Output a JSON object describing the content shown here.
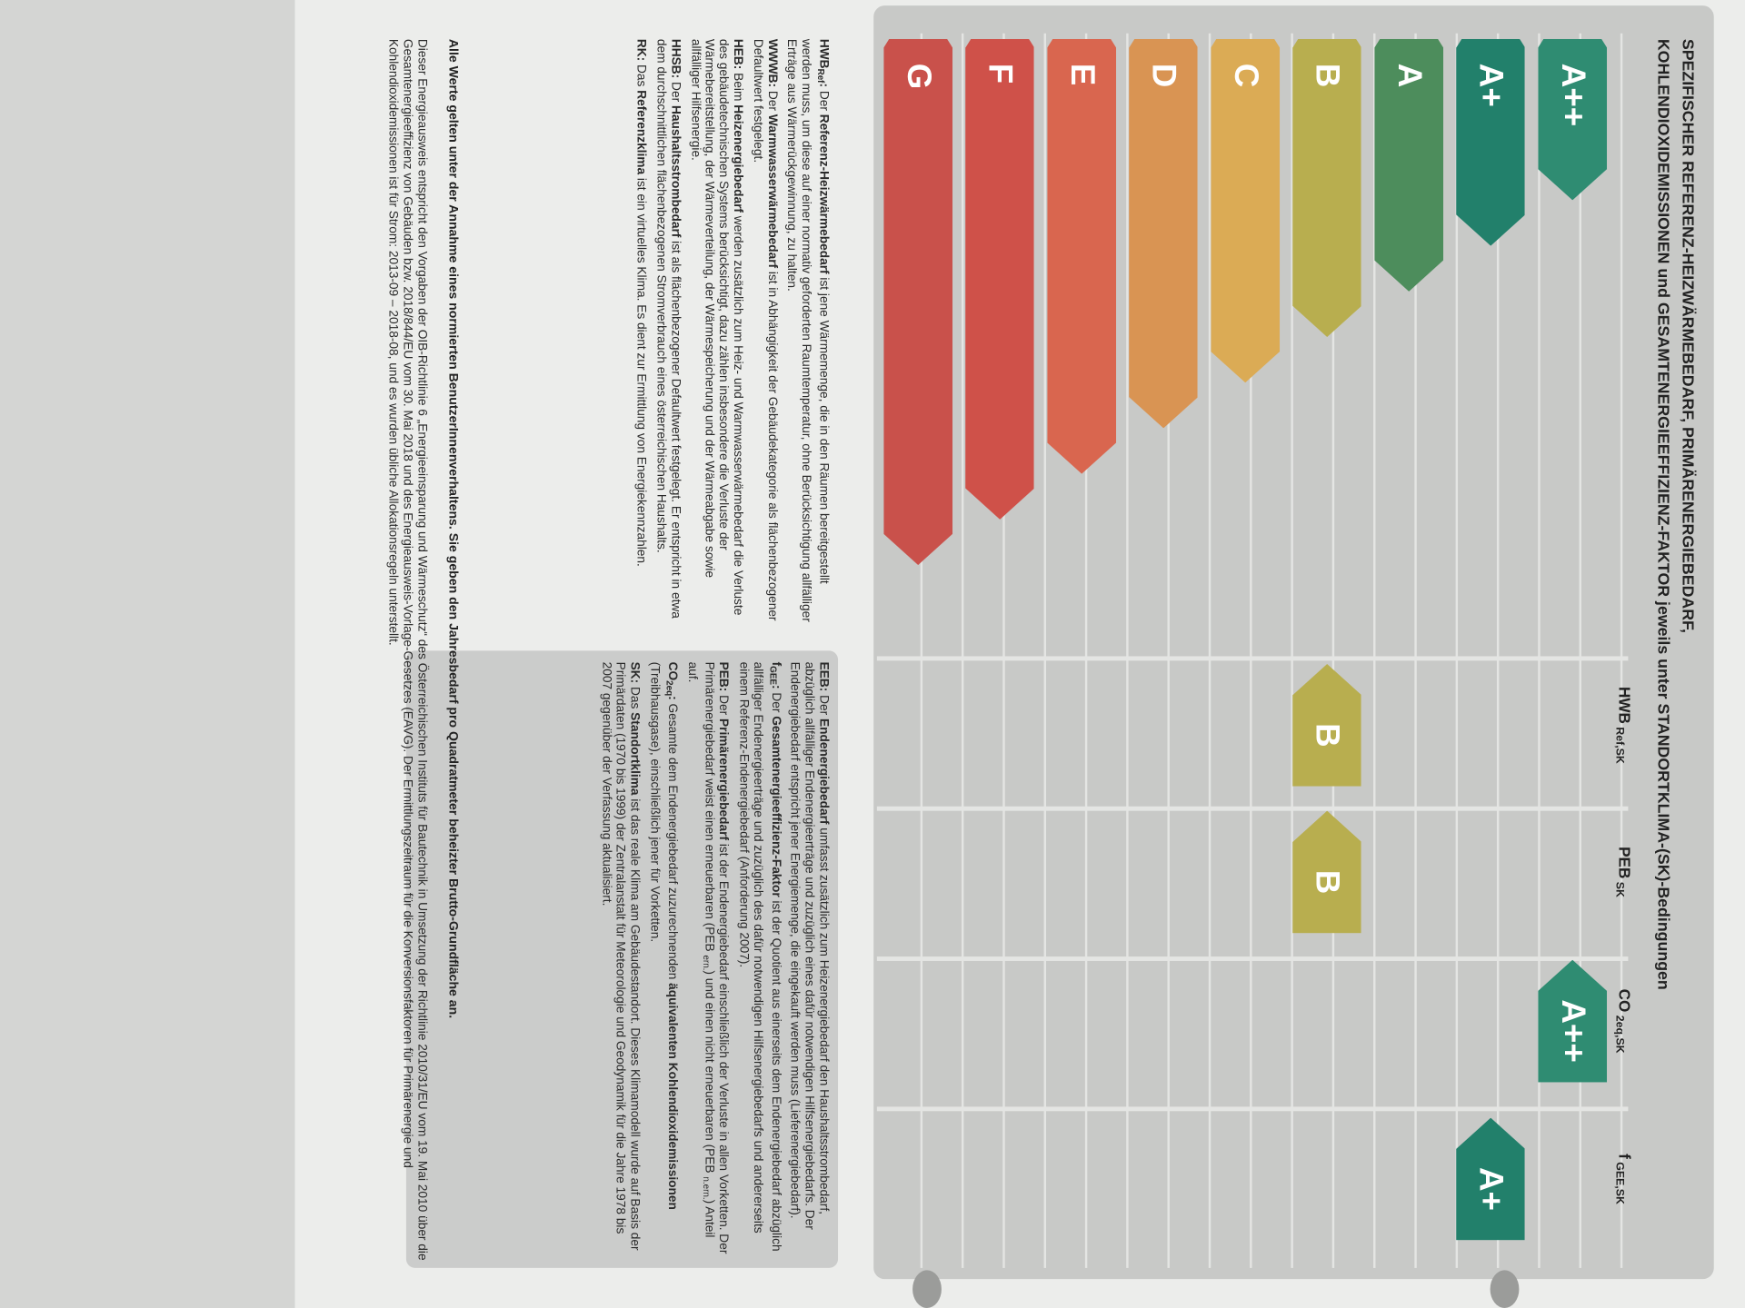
{
  "title": [
    "SPEZIFISCHER REFERENZ-HEIZWÄRMEBEDARF, PRIMÄRENERGIEBEDARF,",
    "KOHLENDIOXIDEMISSIONEN und GESAMTENERGIEEFFIZIENZ-FAKTOR jeweils unter STANDORTKLIMA-(SK)-Bedingungen"
  ],
  "grades": [
    {
      "label": "A++",
      "color": "#2f8c72"
    },
    {
      "label": "A+",
      "color": "#22806b"
    },
    {
      "label": "A",
      "color": "#4d8d5c"
    },
    {
      "label": "B",
      "color": "#b8ae4f"
    },
    {
      "label": "C",
      "color": "#dbab55"
    },
    {
      "label": "D",
      "color": "#d99453"
    },
    {
      "label": "E",
      "color": "#d9664f"
    },
    {
      "label": "F",
      "color": "#cf5149"
    },
    {
      "label": "G",
      "color": "#c9514b"
    }
  ],
  "columns": [
    {
      "main": "HWB",
      "sub": "Ref,SK"
    },
    {
      "main": "PEB",
      "sub": "SK"
    },
    {
      "main": "CO",
      "sub": "2eq,SK"
    },
    {
      "main": "f",
      "sub": "GEE,SK"
    }
  ],
  "ratings": [
    {
      "column": 0,
      "grade": "B"
    },
    {
      "column": 1,
      "grade": "B"
    },
    {
      "column": 2,
      "grade": "A++"
    },
    {
      "column": 3,
      "grade": "A+"
    }
  ],
  "definitions_left": [
    [
      {
        "t": "HWB",
        "bold": true
      },
      {
        "t": "Ref",
        "bold": true,
        "sub": true
      },
      {
        "t": ": ",
        "bold": true
      },
      {
        "t": "Der "
      },
      {
        "t": "Referenz-Heizwärmebedarf",
        "bold": true
      },
      {
        "t": " ist jene Wärmemenge, die in den Räumen bereitgestellt werden muss, um diese auf einer normativ geforderten Raumtemperatur, ohne Berücksichtigung allfälliger Erträge aus Wärmerückgewinnung, zu halten."
      }
    ],
    [
      {
        "t": "WWWB: ",
        "bold": true
      },
      {
        "t": "Der "
      },
      {
        "t": "Warmwasserwärmebedarf",
        "bold": true
      },
      {
        "t": " ist in Abhängigkeit der Gebäudekategorie als flächenbezogener Defaultwert festgelegt."
      }
    ],
    [
      {
        "t": "HEB: ",
        "bold": true
      },
      {
        "t": "Beim "
      },
      {
        "t": "Heizenergiebedarf",
        "bold": true
      },
      {
        "t": " werden zusätzlich zum Heiz- und Warmwasserwärmebedarf die Verluste des gebäudetechnischen Systems berücksichtigt, dazu zählen insbesondere die Verluste der Wärmebereitstellung, der Wärmeverteilung, der Wärmespeicherung und der Wärmeabgabe sowie allfälliger Hilfsenergie."
      }
    ],
    [
      {
        "t": "HHSB: ",
        "bold": true
      },
      {
        "t": "Der "
      },
      {
        "t": "Haushaltsstrombedarf",
        "bold": true
      },
      {
        "t": " ist als flächenbezogener Defaultwert festgelegt. Er entspricht in etwa dem durchschnittlichen flächenbezogenen Stromverbrauch eines österreichischen Haushalts."
      }
    ],
    [
      {
        "t": "RK: ",
        "bold": true
      },
      {
        "t": "Das "
      },
      {
        "t": "Referenzklima",
        "bold": true
      },
      {
        "t": " ist ein virtuelles Klima. Es dient zur Ermittlung von Energiekennzahlen."
      }
    ]
  ],
  "definitions_right": [
    [
      {
        "t": "EEB: ",
        "bold": true
      },
      {
        "t": "Der "
      },
      {
        "t": "Endenergiebedarf",
        "bold": true
      },
      {
        "t": " umfasst zusätzlich zum Heizenergiebedarf den Haushaltsstrombedarf, abzüglich allfälliger Endenergieerträge und zuzüglich eines dafür notwendigen Hilfsenergiebedarfs. Der Endenergiebedarf entspricht jener Energiemenge, die eingekauft werden muss (Lieferenergiebedarf)."
      }
    ],
    [
      {
        "t": "f",
        "bold": true
      },
      {
        "t": "GEE",
        "bold": true,
        "sub": true
      },
      {
        "t": ": ",
        "bold": true
      },
      {
        "t": "Der "
      },
      {
        "t": "Gesamtenergieeffizienz-Faktor",
        "bold": true
      },
      {
        "t": " ist der Quotient aus einerseits dem Endenergiebedarf abzüglich allfälliger Endenergieerträge und zuzüglich des dafür notwendigen Hilfsenergiebedarfs und andererseits einem Referenz-Endenergiebedarf (Anforderung 2007)."
      }
    ],
    [
      {
        "t": "PEB: ",
        "bold": true
      },
      {
        "t": "Der "
      },
      {
        "t": "Primärenergiebedarf",
        "bold": true
      },
      {
        "t": " ist der Endenergiebedarf einschließlich der Verluste in allen Vorketten. Der Primärenergiebedarf weist einen erneuerbaren (PEB "
      },
      {
        "t": "ern.",
        "sub": true
      },
      {
        "t": ") und einen nicht erneuerbaren (PEB "
      },
      {
        "t": "n.ern.",
        "sub": true
      },
      {
        "t": ") Anteil auf."
      }
    ],
    [
      {
        "t": "CO",
        "bold": true
      },
      {
        "t": "2eq",
        "bold": true,
        "sub": true
      },
      {
        "t": ": ",
        "bold": true
      },
      {
        "t": "Gesamte dem Endenergiebedarf zuzurechnenden "
      },
      {
        "t": "äquivalenten Kohlendioxidemissionen",
        "bold": true
      },
      {
        "t": " (Treibhausgase), einschließlich jener für Vorketten."
      }
    ],
    [
      {
        "t": "SK: ",
        "bold": true
      },
      {
        "t": "Das "
      },
      {
        "t": "Standortklima",
        "bold": true
      },
      {
        "t": " ist das reale Klima am Gebäudestandort. Dieses Klimamodell wurde auf Basis der Primärdaten (1970 bis 1999) der Zentralanstalt für Meteorologie und Geodynamik für die Jahre 1978 bis 2007 gegenüber der Verfassung aktualisiert."
      }
    ]
  ],
  "note": "Alle Werte gelten unter der Annahme eines normierten BenutzerInnenverhaltens. Sie geben den Jahresbedarf pro Quadratmeter beheizter Brutto-Grundfläche an.",
  "footer": "Dieser Energieausweis entspricht den Vorgaben der OIB-Richtlinie 6 „Energieeinsparung und Wärmeschutz“ des Österreichischen Instituts für Bautechnik in Umsetzung der Richtlinie 2010/31/EU vom 19. Mai 2010 über die Gesamtenergieeffizienz von Gebäuden bzw. 2018/844/EU vom 30. Mai 2018 und des Energieausweis-Vorlage-Gesetzes (EAVG). Der Ermittlungszeitraum für die Konversionsfaktoren für Primärenergie und Kohlendioxidemissionen ist für Strom: 2013-09 – 2018-08, und es wurden übliche Allokationsregeln unterstellt."
}
